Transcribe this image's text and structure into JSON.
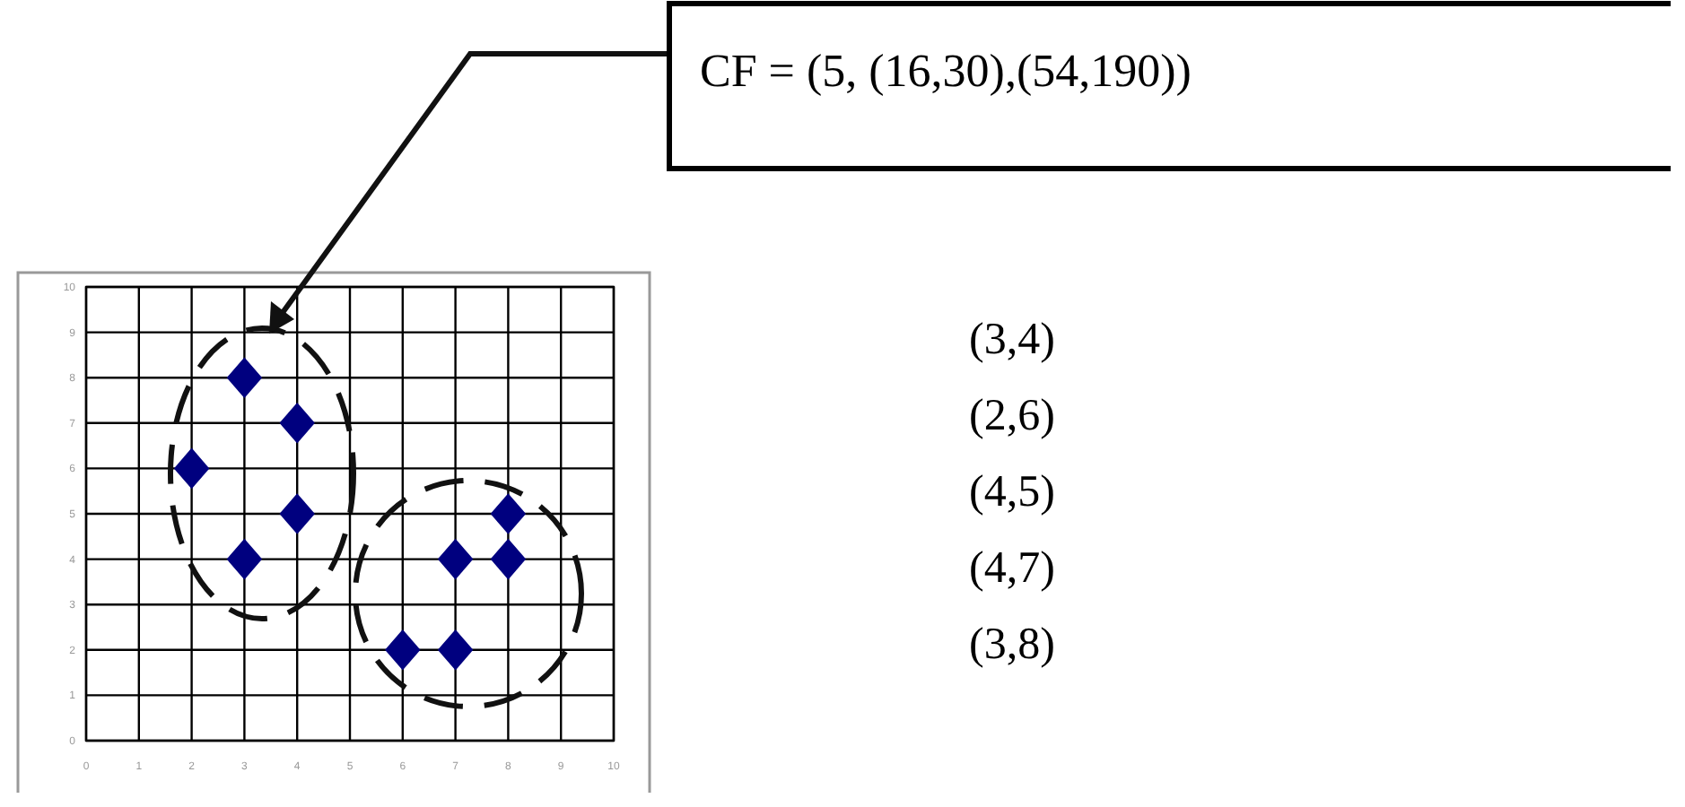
{
  "chart_data": {
    "type": "scatter",
    "x": [
      3,
      2,
      4,
      4,
      3,
      6,
      7,
      7,
      8,
      8
    ],
    "values": [
      4,
      6,
      5,
      7,
      8,
      2,
      2,
      4,
      4,
      5
    ],
    "color": "#00007f",
    "marker": "diamond",
    "xlim": [
      0,
      10
    ],
    "ylim": [
      0,
      10
    ],
    "xticks": [
      0,
      1,
      2,
      3,
      4,
      5,
      6,
      7,
      8,
      9,
      10
    ],
    "yticks": [
      0,
      1,
      2,
      3,
      4,
      5,
      6,
      7,
      8,
      9,
      10
    ],
    "grid": true,
    "annotations": [
      "CF = (5, (16,30),(54,190))",
      "(3,4)",
      "(2,6)",
      "(4,5)",
      "(4,7)",
      "(3,8)"
    ]
  }
}
